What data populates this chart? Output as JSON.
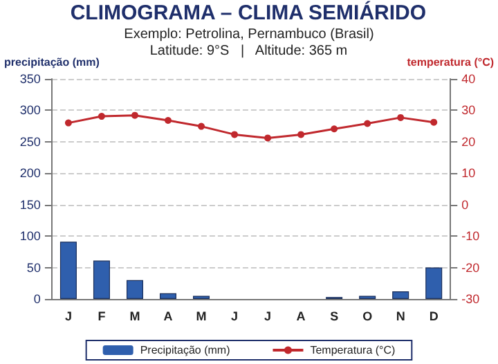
{
  "chart_data": {
    "type": "bar",
    "title": "CLIMOGRAMA – CLIMA SEMIÁRIDO",
    "subtitle": "Exemplo: Petrolina, Pernambuco (Brasil)\nLatitude: 9°S   |   Altitude: 365 m",
    "ylabel": "precipitação (mm)",
    "y2label": "temperatura (°C)",
    "categories": [
      "J",
      "F",
      "M",
      "A",
      "M",
      "J",
      "J",
      "A",
      "S",
      "O",
      "N",
      "D"
    ],
    "series": [
      {
        "name": "Precipitação (mm)",
        "color": "#2f5fad",
        "values": [
          91,
          61,
          30,
          9,
          5,
          0,
          0,
          0,
          3,
          5,
          12,
          50
        ]
      },
      {
        "name": "Temperatura (°C)",
        "type": "line",
        "axis": "y2",
        "color": "#c0282d",
        "values": [
          26,
          28.1,
          28.4,
          26.8,
          24.9,
          22.3,
          21.2,
          22.3,
          24.1,
          25.8,
          27.7,
          26.2
        ]
      }
    ],
    "ylim": [
      0,
      350
    ],
    "yticks": [
      0,
      50,
      100,
      150,
      200,
      250,
      300,
      350
    ],
    "y2lim": [
      -30,
      40
    ],
    "y2ticks": [
      -30,
      -20,
      -10,
      0,
      10,
      20,
      30,
      40
    ],
    "grid": "y",
    "legend": "bottom",
    "marker": "circle",
    "line_style": "solid"
  }
}
